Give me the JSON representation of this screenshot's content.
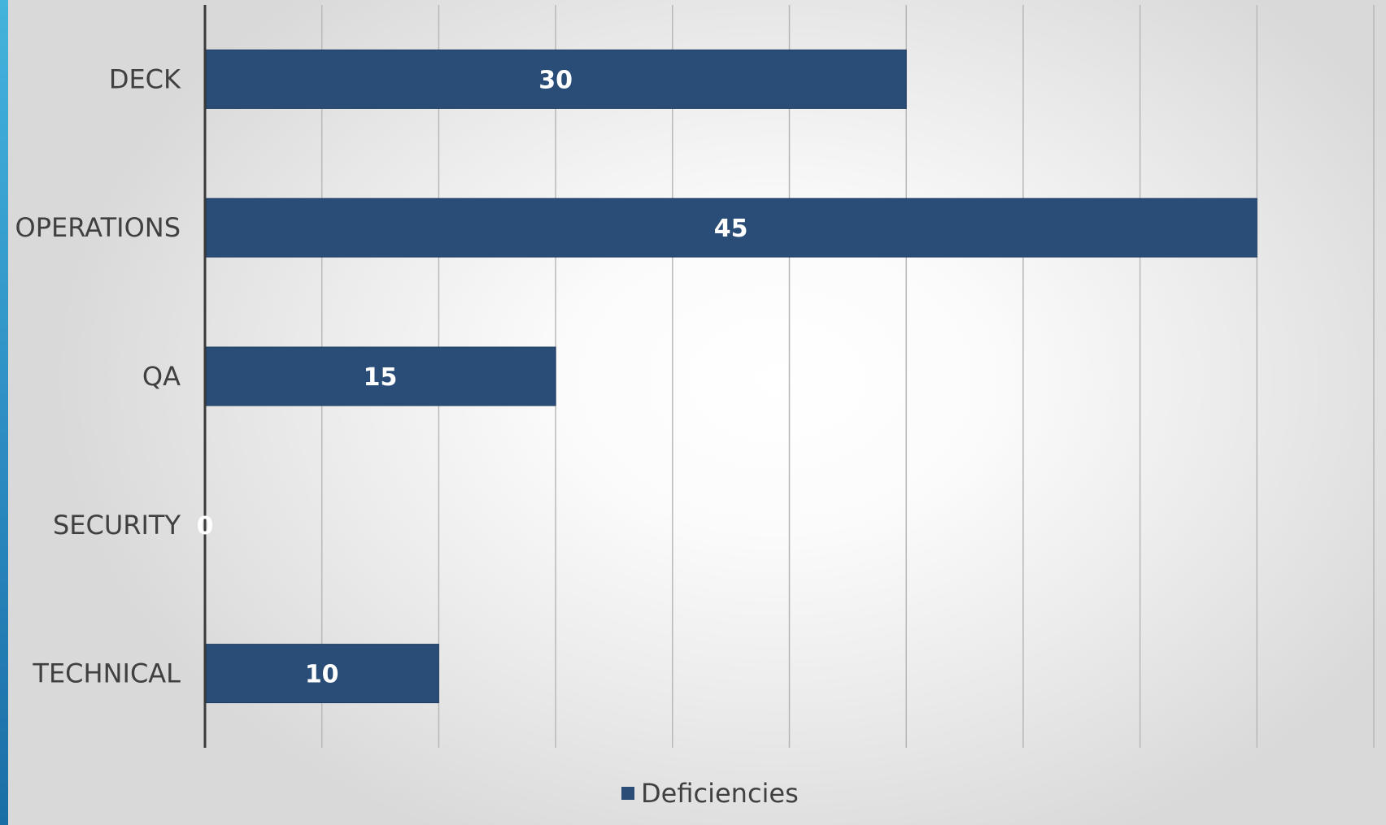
{
  "chart_data": {
    "type": "bar",
    "orientation": "horizontal",
    "categories": [
      "DECK",
      "OPERATIONS",
      "QA",
      "SECURITY",
      "TECHNICAL"
    ],
    "series": [
      {
        "name": "Deficiencies",
        "values": [
          30,
          45,
          15,
          0,
          10
        ],
        "color": "#2a4d78"
      }
    ],
    "data_labels": [
      "30",
      "45",
      "15",
      "0",
      "10"
    ],
    "xlim": [
      0,
      50
    ],
    "grid": true,
    "legend": "bottom",
    "accent_color": "#2e8fc4"
  }
}
